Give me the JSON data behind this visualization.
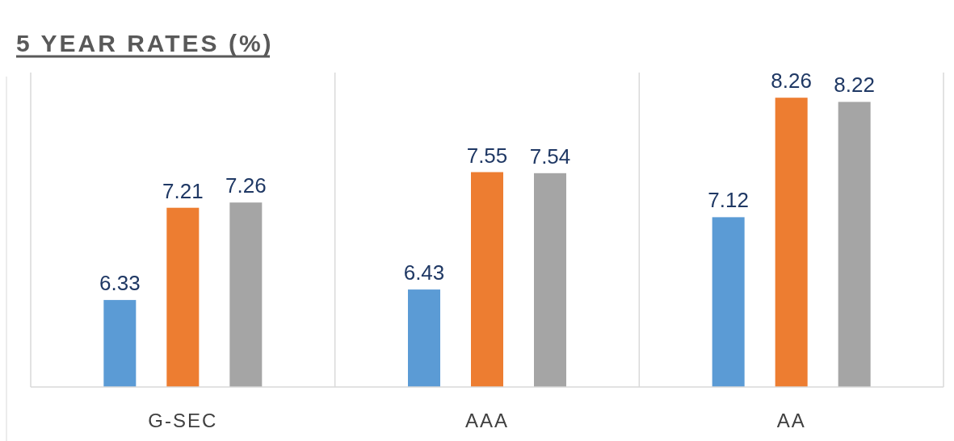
{
  "chart_data": {
    "type": "bar",
    "title": "5 YEAR RATES (%)",
    "categories": [
      "G-SEC",
      "AAA",
      "AA"
    ],
    "series": [
      {
        "color": "#5b9bd5",
        "values": [
          6.33,
          6.43,
          7.12
        ]
      },
      {
        "color": "#ed7d31",
        "values": [
          7.21,
          7.55,
          8.26
        ]
      },
      {
        "color": "#a5a5a5",
        "values": [
          7.26,
          7.54,
          8.22
        ]
      }
    ],
    "ylim": [
      5.5,
      8.5
    ],
    "data_labels": true,
    "grid": "x"
  }
}
